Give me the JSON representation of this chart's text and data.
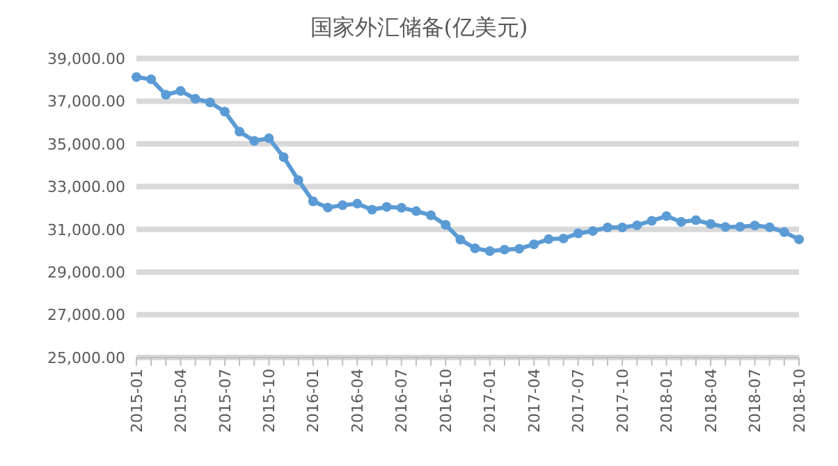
{
  "chart_data": {
    "type": "line",
    "title": "国家外汇储备(亿美元)",
    "categories": [
      "2015-01",
      null,
      null,
      "2015-04",
      null,
      null,
      "2015-07",
      null,
      null,
      "2015-10",
      null,
      null,
      "2016-01",
      null,
      null,
      "2016-04",
      null,
      null,
      "2016-07",
      null,
      null,
      "2016-10",
      null,
      null,
      "2017-01",
      null,
      null,
      "2017-04",
      null,
      null,
      "2017-07",
      null,
      null,
      "2017-10",
      null,
      null,
      "2018-01",
      null,
      null,
      "2018-04",
      null,
      null,
      "2018-07",
      null,
      null,
      "2018-10"
    ],
    "series": [
      {
        "color": "#5b9bd5",
        "values": [
          38130,
          38020,
          37300,
          37480,
          37110,
          36940,
          36510,
          35570,
          35140,
          35260,
          34380,
          33300,
          32310,
          32020,
          32130,
          32200,
          31920,
          32050,
          32010,
          31850,
          31660,
          31210,
          30520,
          30110,
          29980,
          30050,
          30090,
          30300,
          30540,
          30570,
          30810,
          30920,
          31090,
          31090,
          31190,
          31400,
          31620,
          31350,
          31430,
          31250,
          31110,
          31120,
          31180,
          31100,
          30870,
          30530
        ]
      }
    ],
    "ylim": [
      25000,
      39000
    ],
    "yticks": [
      {
        "value": 25000,
        "label": "25,000.00"
      },
      {
        "value": 27000,
        "label": "27,000.00"
      },
      {
        "value": 29000,
        "label": "29,000.00"
      },
      {
        "value": 31000,
        "label": "31,000.00"
      },
      {
        "value": 33000,
        "label": "33,000.00"
      },
      {
        "value": 35000,
        "label": "35,000.00"
      },
      {
        "value": 37000,
        "label": "37,000.00"
      },
      {
        "value": 39000,
        "label": "39,000.00"
      }
    ],
    "grid": "y",
    "marker": "circle",
    "line_style": "solid",
    "legend": false
  }
}
